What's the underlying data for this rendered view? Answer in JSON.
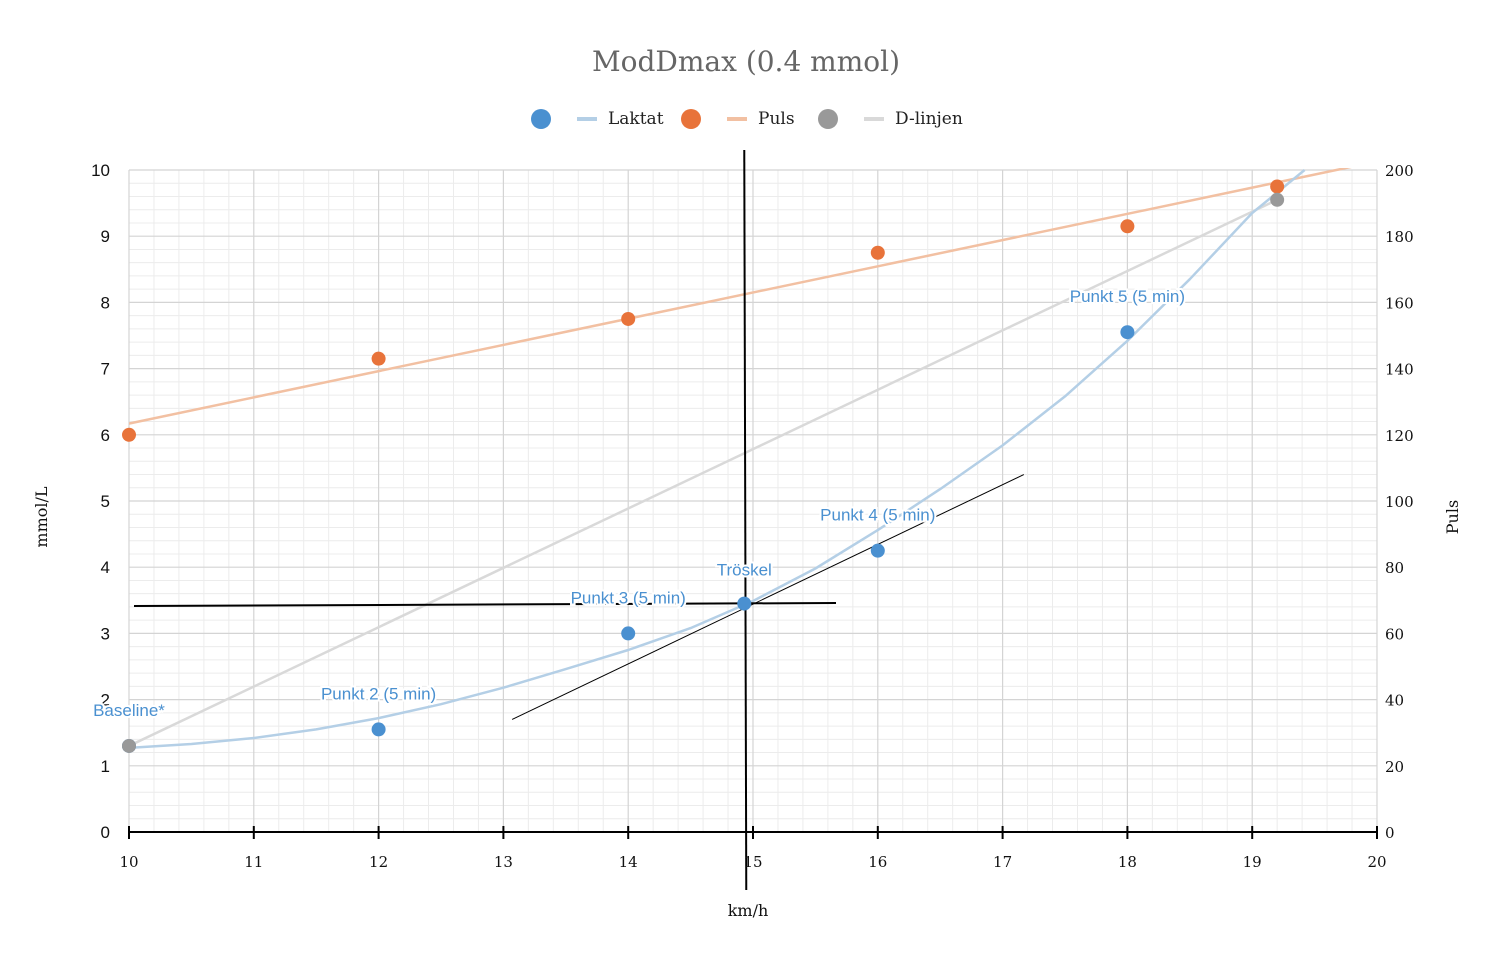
{
  "chart_data": {
    "type": "line",
    "title": "ModDmax (0.4 mmol)",
    "xlabel": "km/h",
    "ylabel": "mmol/L",
    "y2label": "Puls",
    "xlim": [
      10,
      20
    ],
    "ylim": [
      0,
      10
    ],
    "y2lim": [
      0,
      200
    ],
    "x_ticks": [
      10,
      11,
      12,
      13,
      14,
      15,
      16,
      17,
      18,
      19,
      20
    ],
    "y_ticks": [
      0,
      1,
      2,
      3,
      4,
      5,
      6,
      7,
      8,
      9,
      10
    ],
    "y2_ticks": [
      0,
      20,
      40,
      60,
      80,
      100,
      120,
      140,
      160,
      180,
      200
    ],
    "grid": true,
    "legend_position": "top-center",
    "colors": {
      "laktat": "#4a90d0",
      "laktat_line": "#b4cfe6",
      "puls": "#e8733a",
      "puls_line": "#f2c0a2",
      "dlinjen": "#999999",
      "dlinjen_line": "#d9d9d9",
      "grid_major": "#d4d4d4",
      "grid_minor": "#ececec",
      "marker": "#000000"
    },
    "legend": [
      {
        "key": "laktat",
        "label": "Laktat"
      },
      {
        "key": "puls",
        "label": "Puls"
      },
      {
        "key": "dlinjen",
        "label": "D-linjen"
      }
    ],
    "series": [
      {
        "key": "laktat",
        "name": "Laktat",
        "axis": "left",
        "points": [
          {
            "x": 10,
            "y": 1.3
          },
          {
            "x": 12,
            "y": 1.55
          },
          {
            "x": 14,
            "y": 3.0
          },
          {
            "x": 14.93,
            "y": 3.45
          },
          {
            "x": 16,
            "y": 4.25
          },
          {
            "x": 18,
            "y": 7.55
          }
        ],
        "fit_curve": {
          "x": [
            10,
            10.5,
            11,
            11.5,
            12,
            12.5,
            13,
            13.5,
            14,
            14.5,
            15,
            15.5,
            16,
            16.5,
            17,
            17.5,
            18,
            18.5,
            19,
            19.42
          ],
          "y": [
            1.27,
            1.33,
            1.42,
            1.55,
            1.72,
            1.93,
            2.18,
            2.46,
            2.75,
            3.08,
            3.49,
            3.98,
            4.56,
            5.18,
            5.84,
            6.58,
            7.42,
            8.35,
            9.35,
            10.0
          ]
        }
      },
      {
        "key": "puls",
        "name": "Puls",
        "axis": "right",
        "points": [
          {
            "x": 10,
            "y": 120
          },
          {
            "x": 12,
            "y": 143
          },
          {
            "x": 14,
            "y": 155
          },
          {
            "x": 16,
            "y": 175
          },
          {
            "x": 18,
            "y": 183
          },
          {
            "x": 19.2,
            "y": 195
          }
        ],
        "fit_line": {
          "x": [
            9.95,
            19.8
          ],
          "y": [
            123,
            201
          ]
        }
      },
      {
        "key": "dlinjen",
        "name": "D-linjen",
        "axis": "left",
        "points": [
          {
            "x": 10,
            "y": 1.3
          },
          {
            "x": 19.2,
            "y": 9.55
          }
        ],
        "fit_line": {
          "x": [
            10,
            19.2
          ],
          "y": [
            1.3,
            9.55
          ]
        }
      }
    ],
    "point_labels": [
      {
        "text": "Baseline*",
        "x": 10,
        "y": 1.3
      },
      {
        "text": "Punkt 2 (5 min)",
        "x": 12,
        "y": 1.55
      },
      {
        "text": "Punkt 3 (5 min)",
        "x": 14,
        "y": 3.0
      },
      {
        "text": "Tröskel",
        "x": 14.93,
        "y": 3.45
      },
      {
        "text": "Punkt 4 (5 min)",
        "x": 16,
        "y": 4.25
      },
      {
        "text": "Punkt 5 (5 min)",
        "x": 18,
        "y": 7.55
      }
    ],
    "threshold": {
      "x": 14.93,
      "y": 3.45
    },
    "tangent_line": {
      "x": [
        13.07,
        17.17
      ],
      "y": [
        1.7,
        5.4
      ]
    }
  }
}
